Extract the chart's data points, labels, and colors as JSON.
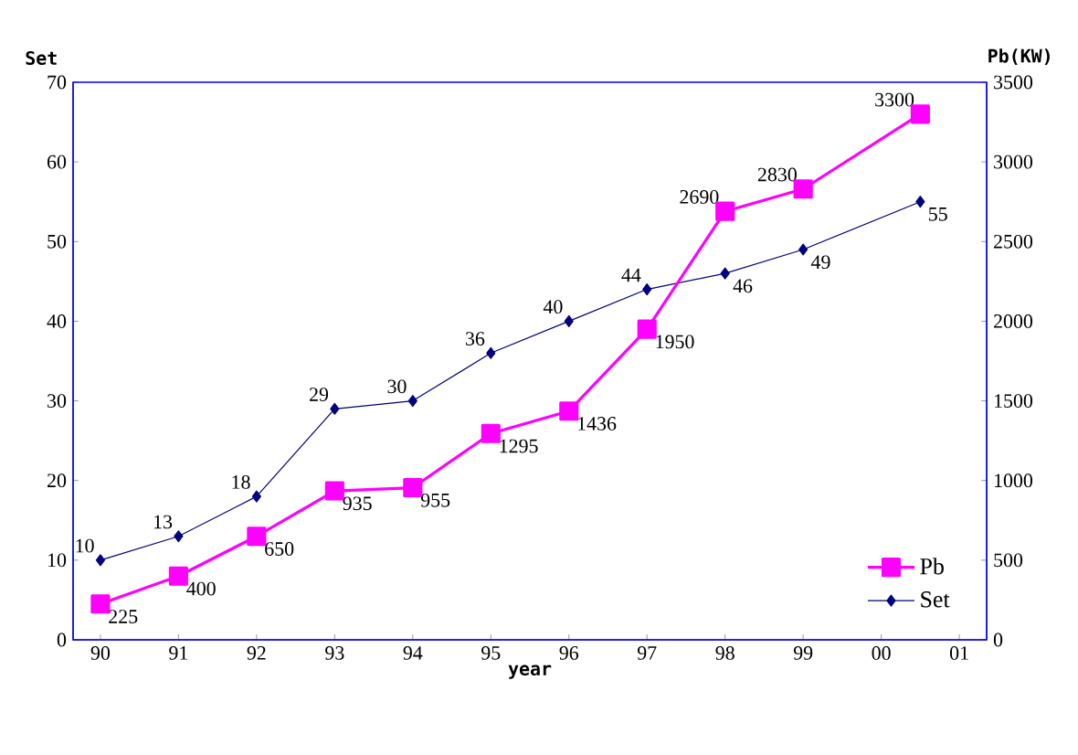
{
  "chart_data": {
    "type": "line",
    "xlabel": "year",
    "ylabel": "Set",
    "y2label": "Pb(KW)",
    "x": [
      1990,
      1991,
      1992,
      1993,
      1994,
      1995,
      1996,
      1997,
      1998,
      1999,
      2000.5
    ],
    "xlim": [
      1989.65,
      2001.35
    ],
    "xticks": [
      {
        "value": 1990,
        "label": "90"
      },
      {
        "value": 1991,
        "label": "91"
      },
      {
        "value": 1992,
        "label": "92"
      },
      {
        "value": 1993,
        "label": "93"
      },
      {
        "value": 1994,
        "label": "94"
      },
      {
        "value": 1995,
        "label": "95"
      },
      {
        "value": 1996,
        "label": "96"
      },
      {
        "value": 1997,
        "label": "97"
      },
      {
        "value": 1998,
        "label": "98"
      },
      {
        "value": 1999,
        "label": "99"
      },
      {
        "value": 2000,
        "label": "00"
      },
      {
        "value": 2001,
        "label": "01"
      }
    ],
    "ylim": [
      0,
      70
    ],
    "yticks": [
      0,
      10,
      20,
      30,
      40,
      50,
      60,
      70
    ],
    "y2lim": [
      0,
      3500
    ],
    "y2ticks": [
      0,
      500,
      1000,
      1500,
      2000,
      2500,
      3000,
      3500
    ],
    "series": [
      {
        "name": "Pb",
        "color": "#ff00ff",
        "axis": "y2",
        "marker": "square",
        "values": [
          225,
          400,
          650,
          935,
          955,
          1295,
          1436,
          1950,
          2690,
          2830,
          3300
        ]
      },
      {
        "name": "Set",
        "color": "#000080",
        "marker": "diamond",
        "values": [
          10,
          13,
          18,
          29,
          30,
          36,
          40,
          44,
          46,
          49,
          55
        ]
      }
    ],
    "data_labels": true,
    "legend": "bottom right",
    "grid": false
  }
}
